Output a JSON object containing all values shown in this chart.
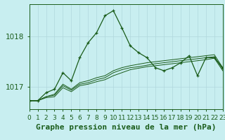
{
  "xlabel": "Graphe pression niveau de la mer (hPa)",
  "background_color": "#c8eef0",
  "grid_color": "#b0d8dc",
  "line_color": "#1a5c1a",
  "marker_color": "#1a5c1a",
  "ylim": [
    1016.55,
    1018.65
  ],
  "xlim": [
    0,
    23
  ],
  "yticks": [
    1017,
    1018
  ],
  "xticks": [
    0,
    1,
    2,
    3,
    4,
    5,
    6,
    7,
    8,
    9,
    10,
    11,
    12,
    13,
    14,
    15,
    16,
    17,
    18,
    19,
    20,
    21,
    22,
    23
  ],
  "series": [
    [
      1016.72,
      1016.72,
      1016.88,
      1016.95,
      1017.28,
      1017.12,
      1017.58,
      1017.88,
      1018.08,
      1018.42,
      1018.52,
      1018.18,
      1017.82,
      1017.68,
      1017.58,
      1017.38,
      1017.32,
      1017.38,
      1017.48,
      1017.62,
      1017.22,
      1017.58,
      1017.58,
      1017.38
    ],
    [
      1016.72,
      1016.72,
      1016.8,
      1016.85,
      1017.05,
      1016.95,
      1017.08,
      1017.12,
      1017.18,
      1017.22,
      1017.32,
      1017.38,
      1017.42,
      1017.45,
      1017.48,
      1017.5,
      1017.52,
      1017.54,
      1017.56,
      1017.58,
      1017.6,
      1017.62,
      1017.64,
      1017.38
    ],
    [
      1016.72,
      1016.72,
      1016.8,
      1016.83,
      1017.02,
      1016.93,
      1017.05,
      1017.08,
      1017.14,
      1017.18,
      1017.28,
      1017.34,
      1017.38,
      1017.4,
      1017.43,
      1017.46,
      1017.48,
      1017.5,
      1017.52,
      1017.54,
      1017.56,
      1017.58,
      1017.6,
      1017.35
    ],
    [
      1016.72,
      1016.72,
      1016.78,
      1016.8,
      1016.98,
      1016.9,
      1017.02,
      1017.05,
      1017.1,
      1017.14,
      1017.22,
      1017.28,
      1017.34,
      1017.37,
      1017.4,
      1017.42,
      1017.44,
      1017.46,
      1017.48,
      1017.5,
      1017.52,
      1017.54,
      1017.57,
      1017.32
    ]
  ],
  "xlabel_fontsize": 8,
  "tick_fontsize": 6.5,
  "ytick_fontsize": 7.5,
  "lw_main": 0.9,
  "lw_other": 0.7
}
